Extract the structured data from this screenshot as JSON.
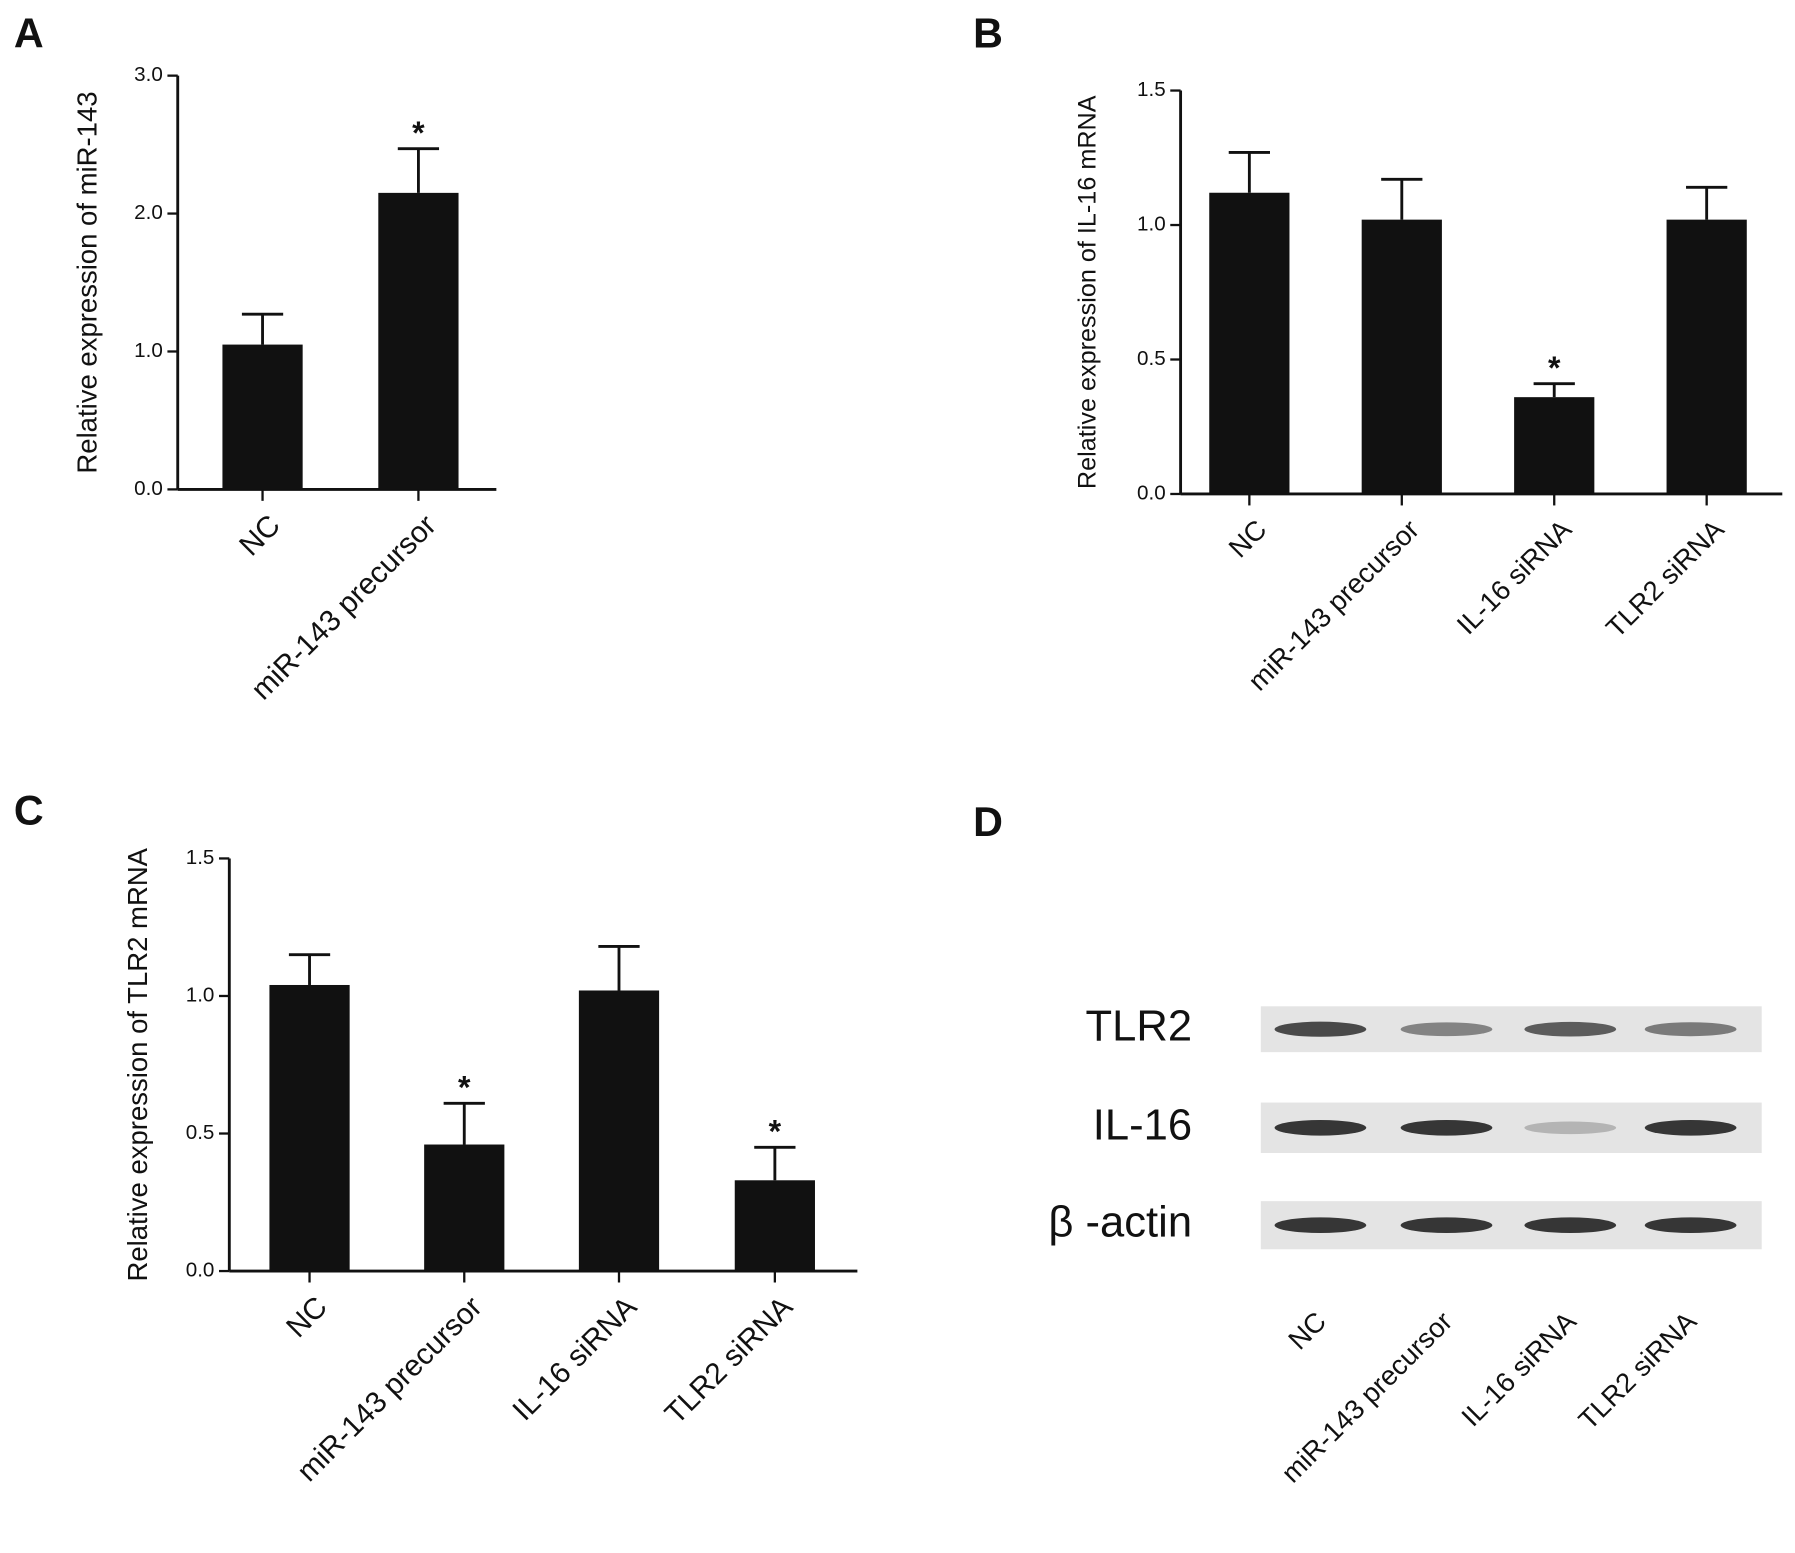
{
  "chart_data": [
    {
      "type": "bar",
      "panel": "A",
      "ylabel": "Relative expression of miR-143",
      "categories": [
        "NC",
        "miR-143 precursor"
      ],
      "series": [
        {
          "color": "#111111",
          "values": [
            1.05,
            2.15
          ],
          "errors": [
            0.22,
            0.32
          ],
          "markers": [
            null,
            "*"
          ]
        }
      ],
      "ylim": [
        0,
        3
      ],
      "yticks": [
        {
          "value": 0,
          "label": "0.0"
        },
        {
          "value": 1,
          "label": "1.0"
        },
        {
          "value": 2,
          "label": "2.0"
        },
        {
          "value": 3,
          "label": "3.0"
        }
      ]
    },
    {
      "type": "bar",
      "panel": "B",
      "ylabel": "Relative expression of IL-16 mRNA",
      "categories": [
        "NC",
        "miR-143 precursor",
        "IL-16 siRNA",
        "TLR2 siRNA"
      ],
      "series": [
        {
          "color": "#111111",
          "values": [
            1.12,
            1.02,
            0.36,
            1.02
          ],
          "errors": [
            0.15,
            0.15,
            0.05,
            0.12
          ],
          "markers": [
            null,
            null,
            "*",
            null
          ]
        }
      ],
      "ylim": [
        0,
        1.5
      ],
      "yticks": [
        {
          "value": 0,
          "label": "0.0"
        },
        0.5,
        {
          "value": 1,
          "label": "1.0"
        },
        1.5
      ]
    },
    {
      "type": "bar",
      "panel": "C",
      "ylabel": "Relative expression of TLR2 mRNA",
      "categories": [
        "NC",
        "miR-143 precursor",
        "IL-16 siRNA",
        "TLR2 siRNA"
      ],
      "series": [
        {
          "color": "#111111",
          "values": [
            1.04,
            0.46,
            1.02,
            0.33
          ],
          "errors": [
            0.11,
            0.15,
            0.16,
            0.12
          ],
          "markers": [
            null,
            "*",
            null,
            "*"
          ]
        }
      ],
      "ylim": [
        0,
        1.5
      ],
      "yticks": [
        {
          "value": 0,
          "label": "0.0"
        },
        0.5,
        {
          "value": 1,
          "label": "1.0"
        },
        1.5
      ]
    }
  ],
  "blot": {
    "panel": "D",
    "rows": [
      "TLR2",
      "IL-16",
      "β -actin"
    ],
    "lanes": [
      "NC",
      "miR-143 precursor",
      "IL-16 siRNA",
      "TLR2 siRNA"
    ]
  }
}
